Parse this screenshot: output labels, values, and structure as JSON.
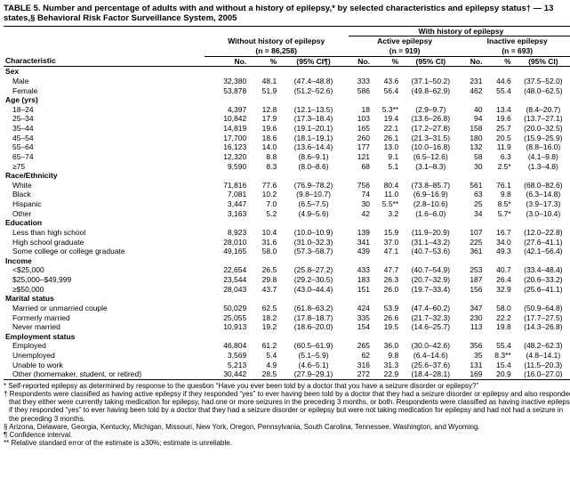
{
  "title": "TABLE 5. Number and percentage of adults with and without a history of epilepsy,* by selected characteristics and epilepsy status† — 13 states,§ Behavioral Risk Factor Surveillance System, 2005",
  "topheaders": {
    "with_history": "With history of epilepsy",
    "without": "Without history of epilepsy",
    "active": "Active epilepsy",
    "inactive": "Inactive epilepsy",
    "n_without": "(n = 86,258)",
    "n_active": "(n = 919)",
    "n_inactive": "(n = 693)"
  },
  "colheads": {
    "characteristic": "Characteristic",
    "no": "No.",
    "pct": "%",
    "ci": "(95% CI¶)",
    "ci2": "(95% CI)"
  },
  "sections": [
    {
      "label": "Sex",
      "rows": [
        {
          "name": "Male",
          "a": "32,380",
          "b": "48.1",
          "c": "(47.4–48.8)",
          "d": "333",
          "e": "43.6",
          "f": "(37.1–50.2)",
          "g": "231",
          "h": "44.6",
          "i": "(37.5–52.0)"
        },
        {
          "name": "Female",
          "a": "53,878",
          "b": "51.9",
          "c": "(51.2–52.6)",
          "d": "586",
          "e": "56.4",
          "f": "(49.8–62.9)",
          "g": "462",
          "h": "55.4",
          "i": "(48.0–62.5)"
        }
      ]
    },
    {
      "label": "Age (yrs)",
      "rows": [
        {
          "name": "18–24",
          "a": "4,397",
          "b": "12.8",
          "c": "(12.1–13.5)",
          "d": "18",
          "e": "5.3**",
          "f": "(2.9–9.7)",
          "g": "40",
          "h": "13.4",
          "i": "(8.4–20.7)"
        },
        {
          "name": "25–34",
          "a": "10,842",
          "b": "17.9",
          "c": "(17.3–18.4)",
          "d": "103",
          "e": "19.4",
          "f": "(13.6–26.8)",
          "g": "94",
          "h": "19.6",
          "i": "(13.7–27.1)"
        },
        {
          "name": "35–44",
          "a": "14,819",
          "b": "19.6",
          "c": "(19.1–20.1)",
          "d": "165",
          "e": "22.1",
          "f": "(17.2–27.8)",
          "g": "158",
          "h": "25.7",
          "i": "(20.0–32.5)"
        },
        {
          "name": "45–54",
          "a": "17,700",
          "b": "18.6",
          "c": "(18.1–19.1)",
          "d": "260",
          "e": "26.1",
          "f": "(21.3–31.5)",
          "g": "180",
          "h": "20.5",
          "i": "(15.9–25.9)"
        },
        {
          "name": "55–64",
          "a": "16,123",
          "b": "14.0",
          "c": "(13.6–14.4)",
          "d": "177",
          "e": "13.0",
          "f": "(10.0–16.8)",
          "g": "132",
          "h": "11.9",
          "i": "(8.8–16.0)"
        },
        {
          "name": "65–74",
          "a": "12,320",
          "b": "8.8",
          "c": "(8.6–9.1)",
          "d": "121",
          "e": "9.1",
          "f": "(6.5–12.6)",
          "g": "58",
          "h": "6.3",
          "i": "(4.1–9.8)"
        },
        {
          "name": "≥75",
          "a": "9,590",
          "b": "8.3",
          "c": "(8.0–8.6)",
          "d": "68",
          "e": "5.1",
          "f": "(3.1–8.3)",
          "g": "30",
          "h": "2.5*",
          "i": "(1.3–4.8)"
        }
      ]
    },
    {
      "label": "Race/Ethnicity",
      "rows": [
        {
          "name": "White",
          "a": "71,816",
          "b": "77.6",
          "c": "(76.9–78.2)",
          "d": "756",
          "e": "80.4",
          "f": "(73.8–85.7)",
          "g": "561",
          "h": "76.1",
          "i": "(68.0–82.6)"
        },
        {
          "name": "Black",
          "a": "7,081",
          "b": "10.2",
          "c": "(9.8–10.7)",
          "d": "74",
          "e": "11.0",
          "f": "(6.9–16.9)",
          "g": "63",
          "h": "9.8",
          "i": "(6.3–14.8)"
        },
        {
          "name": "Hispanic",
          "a": "3,447",
          "b": "7.0",
          "c": "(6.5–7.5)",
          "d": "30",
          "e": "5.5**",
          "f": "(2.8–10.6)",
          "g": "25",
          "h": "8.5*",
          "i": "(3.9–17.3)"
        },
        {
          "name": "Other",
          "a": "3,163",
          "b": "5.2",
          "c": "(4.9–5.6)",
          "d": "42",
          "e": "3.2",
          "f": "(1.6–6.0)",
          "g": "34",
          "h": "5.7*",
          "i": "(3.0–10.4)"
        }
      ]
    },
    {
      "label": "Education",
      "rows": [
        {
          "name": "Less than high school",
          "a": "8,923",
          "b": "10.4",
          "c": "(10.0–10.9)",
          "d": "139",
          "e": "15.9",
          "f": "(11.9–20.9)",
          "g": "107",
          "h": "16.7",
          "i": "(12.0–22.8)"
        },
        {
          "name": "High school graduate",
          "a": "28,010",
          "b": "31.6",
          "c": "(31.0–32.3)",
          "d": "341",
          "e": "37.0",
          "f": "(31.1–43.2)",
          "g": "225",
          "h": "34.0",
          "i": "(27.6–41.1)"
        },
        {
          "name": "Some college or college graduate",
          "a": "49,165",
          "b": "58.0",
          "c": "(57.3–58.7)",
          "d": "439",
          "e": "47.1",
          "f": "(40.7–53.6)",
          "g": "361",
          "h": "49.3",
          "i": "(42.1–56.4)"
        }
      ]
    },
    {
      "label": "Income",
      "rows": [
        {
          "name": "<$25,000",
          "a": "22,654",
          "b": "26.5",
          "c": "(25.8–27.2)",
          "d": "433",
          "e": "47.7",
          "f": "(40.7–54.9)",
          "g": "253",
          "h": "40.7",
          "i": "(33.4–48.4)"
        },
        {
          "name": "$25,000–$49,999",
          "a": "23,544",
          "b": "29.8",
          "c": "(29.2–30.5)",
          "d": "183",
          "e": "26.3",
          "f": "(20.7–32.9)",
          "g": "187",
          "h": "26.4",
          "i": "(20.6–33.2)"
        },
        {
          "name": "≥$50,000",
          "a": "28,043",
          "b": "43.7",
          "c": "(43.0–44.4)",
          "d": "151",
          "e": "26.0",
          "f": "(19.7–33.4)",
          "g": "156",
          "h": "32.9",
          "i": "(25.6–41.1)"
        }
      ]
    },
    {
      "label": "Marital status",
      "rows": [
        {
          "name": "Married or unmarried couple",
          "a": "50,029",
          "b": "62.5",
          "c": "(61.8–63.2)",
          "d": "424",
          "e": "53.9",
          "f": "(47.4–60.2)",
          "g": "347",
          "h": "58.0",
          "i": "(50.9–64.8)"
        },
        {
          "name": "Formerly married",
          "a": "25,055",
          "b": "18.2",
          "c": "(17.8–18.7)",
          "d": "335",
          "e": "26.6",
          "f": "(21.7–32.3)",
          "g": "230",
          "h": "22.2",
          "i": "(17.7–27.5)"
        },
        {
          "name": "Never married",
          "a": "10,913",
          "b": "19.2",
          "c": "(18.6–20.0)",
          "d": "154",
          "e": "19.5",
          "f": "(14.6–25.7)",
          "g": "113",
          "h": "19.8",
          "i": "(14.3–26.8)"
        }
      ]
    },
    {
      "label": "Employment status",
      "rows": [
        {
          "name": "Employed",
          "a": "46,804",
          "b": "61.2",
          "c": "(60.5–61.9)",
          "d": "265",
          "e": "36.0",
          "f": "(30.0–42.6)",
          "g": "356",
          "h": "55.4",
          "i": "(48.2–62.3)"
        },
        {
          "name": "Unemployed",
          "a": "3,569",
          "b": "5.4",
          "c": "(5.1–5.9)",
          "d": "62",
          "e": "9.8",
          "f": "(6.4–14.6)",
          "g": "35",
          "h": "8.3**",
          "i": "(4.8–14.1)"
        },
        {
          "name": "Unable to work",
          "a": "5,213",
          "b": "4.9",
          "c": "(4.6–5.1)",
          "d": "316",
          "e": "31.3",
          "f": "(25.6–37.6)",
          "g": "131",
          "h": "15.4",
          "i": "(11.5–20.3)"
        },
        {
          "name": "Other (homemaker, student, or retired)",
          "a": "30,442",
          "b": "28.5",
          "c": "(27.9–29.1)",
          "d": "272",
          "e": "22.9",
          "f": "(18.4–28.1)",
          "g": "169",
          "h": "20.9",
          "i": "(16.0–27.0)"
        }
      ]
    }
  ],
  "footnotes": {
    "f1": "* Self-reported epilepsy as determined by response to the question “Have you ever been told by a doctor that you have a seizure disorder or epilepsy?”",
    "f2": "† Respondents were classified as having active epilepsy if they responded “yes” to ever having been told by a doctor that they had a seizure disorder or epilepsy and also responded that they either were currently taking medication for epilepsy, had one or more seizures in the preceding 3 months, or both. Respondents were classified as having inactive epilepsy if they responded “yes” to ever having been told by a doctor that they had a seizure disorder or epilepsy but were not taking medication for epilepsy and had not had a seizure in the preceding 3 months.",
    "f3": "§ Arizona, Delaware, Georgia, Kentucky, Michigan, Missouri, New York, Oregon, Pennsylvania, South Carolina, Tennessee, Washington, and Wyoming.",
    "f4": "¶ Confidence interval.",
    "f5": "** Relative standard error of the estimate is ≥30%; estimate is unreliable."
  }
}
